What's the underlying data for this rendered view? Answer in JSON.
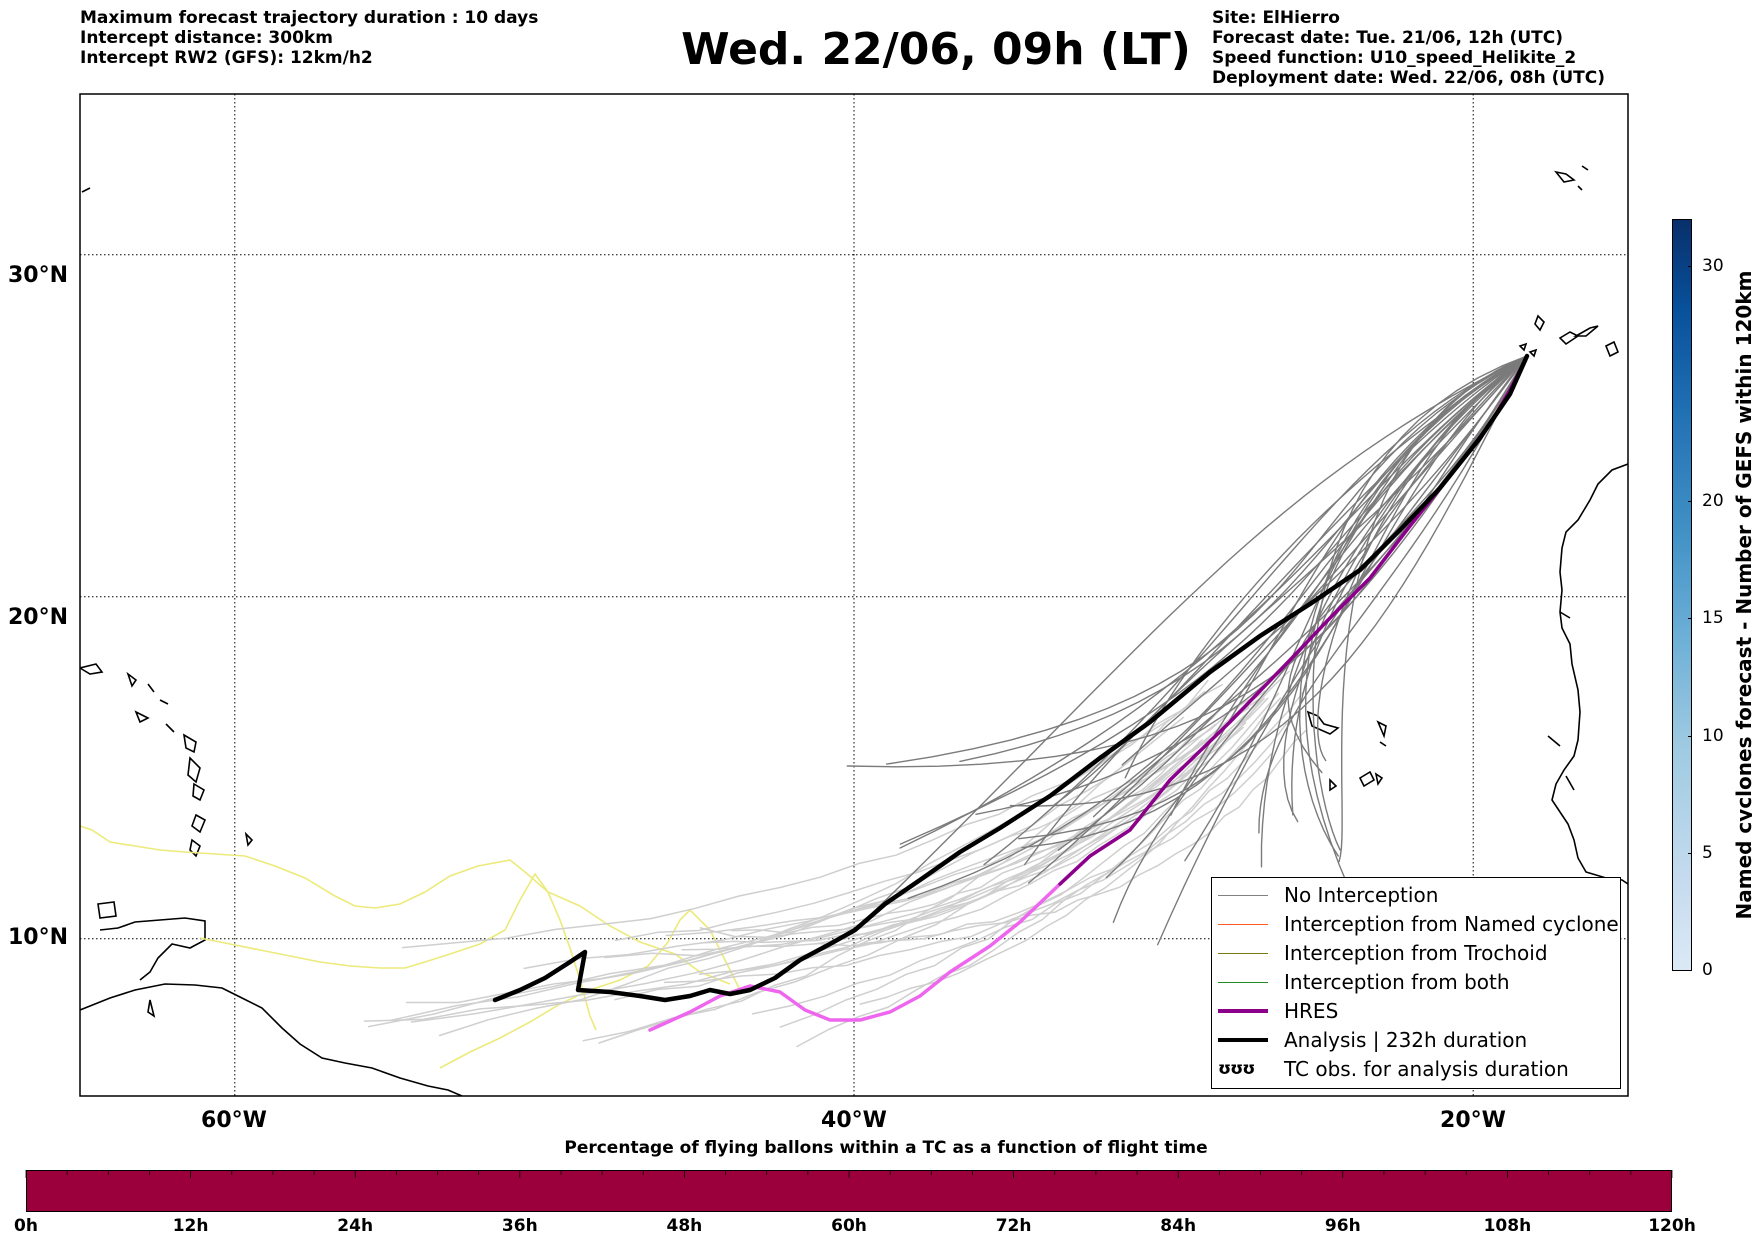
{
  "header": {
    "left_lines": [
      "Maximum forecast trajectory duration : 10 days",
      "Intercept distance: 300km",
      "Intercept RW2 (GFS):  12km/h2"
    ],
    "title": "Wed. 22/06, 09h (LT)",
    "right_lines": [
      "Site: ElHierro",
      "Forecast date: Tue. 21/06, 12h (UTC)",
      "Speed function: U10_speed_Helikite_2",
      "Deployment date: Wed. 22/06, 08h (UTC)"
    ]
  },
  "map": {
    "lon_range": [
      -65,
      -15
    ],
    "lat_range": [
      5.4,
      34.7
    ],
    "lat_labels": [
      "30°N",
      "20°N",
      "10°N"
    ],
    "lat_values": [
      30,
      20,
      10
    ],
    "lon_labels": [
      "60°W",
      "40°W",
      "20°W"
    ],
    "lon_values": [
      -60,
      -40,
      -20
    ],
    "grid": "dotted"
  },
  "legend": {
    "items": [
      {
        "label": "No Interception",
        "color": "#808080",
        "style": "thin"
      },
      {
        "label": "Interception from Named cyclone",
        "color": "#ff5a1e",
        "style": "thin"
      },
      {
        "label": "Interception from Trochoid",
        "color": "#7a7a10",
        "style": "thin"
      },
      {
        "label": "Interception from both",
        "color": "#228b22",
        "style": "thin"
      },
      {
        "label": "HRES",
        "color": "#8b008b",
        "style": "thick"
      },
      {
        "label": "Analysis | 232h duration",
        "color": "#000000",
        "style": "thick"
      },
      {
        "label": "TC obs. for analysis duration",
        "symbol": "ʊʊʊ",
        "style": "symbol"
      }
    ]
  },
  "colorbar": {
    "label": "Named cyclones forecast - Number of GEFS within 120km",
    "ticks": [
      "0",
      "5",
      "10",
      "15",
      "20",
      "30"
    ],
    "tick_values": [
      0,
      5,
      10,
      15,
      20,
      30
    ],
    "max": 32
  },
  "timebar": {
    "title": "Percentage of flying ballons within a TC as a function of flight time",
    "color": "#9c003c",
    "ticks": [
      "0h",
      "12h",
      "24h",
      "36h",
      "48h",
      "60h",
      "72h",
      "84h",
      "96h",
      "108h",
      "120h"
    ]
  }
}
